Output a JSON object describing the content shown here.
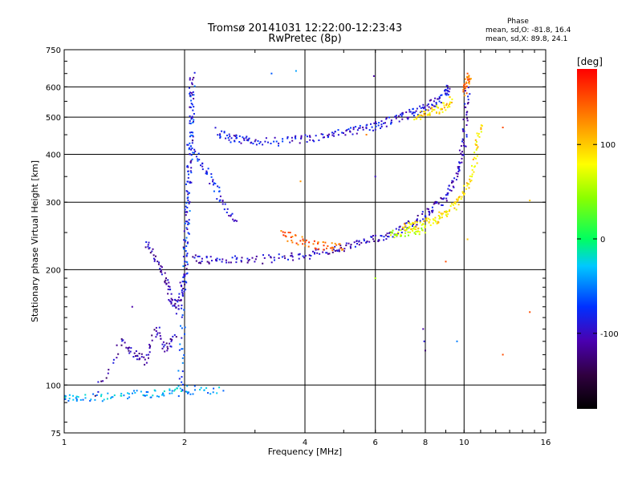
{
  "header": {
    "title": "Tromsø 20141031 12:22:00-12:23:43",
    "subtitle": "RwPretec (8p)"
  },
  "stats": {
    "heading": "Phase",
    "o_mode": "mean, sd,O: -81.8, 16.4",
    "x_mode": "mean, sd,X:  89.8, 24.1"
  },
  "colorbar": {
    "unit": "[deg]",
    "ticks": [
      "100",
      "0",
      "-100"
    ],
    "tick_values": [
      100,
      0,
      -100
    ],
    "range": [
      -180,
      180
    ]
  },
  "chart_data": {
    "type": "scatter",
    "title": "Tromsø 20141031 12:22:00-12:23:43",
    "subtitle": "RwPretec (8p)",
    "xlabel": "Frequency [MHz]",
    "ylabel": "Stationary phase Virtual Height [km]",
    "xscale": "log",
    "yscale": "log",
    "xlim": [
      1,
      16
    ],
    "ylim": [
      75,
      750
    ],
    "xticks": [
      1,
      2,
      4,
      6,
      8,
      10,
      16
    ],
    "xtick_labels": [
      "1",
      "2",
      "4",
      "6",
      "8",
      "10",
      "16"
    ],
    "yticks": [
      75,
      100,
      200,
      300,
      400,
      500,
      600,
      750
    ],
    "ytick_labels": [
      "75",
      "100",
      "200",
      "300",
      "400",
      "500",
      "600",
      "750"
    ],
    "grid": true,
    "colormap": "rainbow",
    "color_variable": "Phase [deg]",
    "traces": [
      {
        "points": [
          [
            1.9,
            155
          ],
          [
            1.96,
            175
          ],
          [
            2.0,
            200
          ],
          [
            2.03,
            260
          ],
          [
            2.05,
            340
          ],
          [
            2.07,
            440
          ],
          [
            2.08,
            560
          ],
          [
            2.09,
            650
          ]
        ],
        "phase": -100
      },
      {
        "points": [
          [
            1.95,
            95
          ],
          [
            1.97,
            130
          ],
          [
            2.0,
            180
          ],
          [
            2.02,
            230
          ],
          [
            2.04,
            300
          ],
          [
            2.06,
            380
          ],
          [
            2.08,
            480
          ],
          [
            2.09,
            600
          ]
        ],
        "phase": -70
      },
      {
        "points": [
          [
            2.05,
            420
          ],
          [
            2.2,
            380
          ],
          [
            2.35,
            340
          ],
          [
            2.5,
            300
          ],
          [
            2.7,
            260
          ]
        ],
        "phase": -85
      },
      {
        "points": [
          [
            2.1,
            215
          ],
          [
            2.3,
            212
          ],
          [
            2.6,
            212
          ],
          [
            3.0,
            212
          ],
          [
            3.5,
            215
          ],
          [
            4.0,
            218
          ],
          [
            4.5,
            222
          ],
          [
            5.0,
            228
          ],
          [
            5.5,
            235
          ],
          [
            6.0,
            240
          ],
          [
            6.5,
            247
          ],
          [
            7.0,
            256
          ],
          [
            7.5,
            266
          ],
          [
            8.0,
            278
          ],
          [
            8.5,
            292
          ],
          [
            9.0,
            310
          ],
          [
            9.5,
            340
          ],
          [
            9.8,
            380
          ],
          [
            10.0,
            430
          ],
          [
            10.1,
            500
          ],
          [
            10.2,
            600
          ]
        ],
        "phase": -100
      },
      {
        "points": [
          [
            7.0,
            258
          ],
          [
            7.5,
            260
          ],
          [
            8.0,
            265
          ],
          [
            8.5,
            270
          ],
          [
            9.0,
            280
          ],
          [
            9.5,
            295
          ],
          [
            10.0,
            320
          ],
          [
            10.5,
            360
          ],
          [
            10.8,
            420
          ],
          [
            11.0,
            480
          ]
        ],
        "phase": 90
      },
      {
        "points": [
          [
            6.5,
            248
          ],
          [
            7.0,
            250
          ],
          [
            7.5,
            252
          ],
          [
            8.0,
            255
          ]
        ],
        "phase": 60
      },
      {
        "points": [
          [
            3.5,
            248
          ],
          [
            3.8,
            240
          ],
          [
            4.2,
            232
          ],
          [
            4.6,
            230
          ],
          [
            5.0,
            230
          ]
        ],
        "phase": 140
      },
      {
        "points": [
          [
            2.4,
            460
          ],
          [
            2.6,
            440
          ],
          [
            2.8,
            435
          ],
          [
            3.0,
            432
          ],
          [
            3.5,
            432
          ],
          [
            4.0,
            438
          ],
          [
            4.5,
            445
          ],
          [
            5.0,
            455
          ],
          [
            5.5,
            465
          ],
          [
            6.0,
            475
          ],
          [
            6.5,
            487
          ],
          [
            7.0,
            500
          ],
          [
            7.5,
            515
          ],
          [
            8.0,
            530
          ],
          [
            8.5,
            550
          ],
          [
            9.0,
            575
          ],
          [
            9.2,
            600
          ]
        ],
        "phase": -90
      },
      {
        "points": [
          [
            7.5,
            500
          ],
          [
            8.0,
            510
          ],
          [
            8.5,
            520
          ],
          [
            9.0,
            535
          ],
          [
            9.3,
            560
          ]
        ],
        "phase": 95
      },
      {
        "points": [
          [
            10.0,
            580
          ],
          [
            10.2,
            620
          ],
          [
            10.4,
            650
          ]
        ],
        "phase": 130
      },
      {
        "points": [
          [
            1.0,
            92
          ],
          [
            1.1,
            92
          ],
          [
            1.3,
            93
          ],
          [
            1.5,
            95
          ],
          [
            1.7,
            95
          ],
          [
            1.9,
            97
          ],
          [
            2.1,
            97
          ],
          [
            2.5,
            96
          ]
        ],
        "phase": -40
      },
      {
        "points": [
          [
            1.2,
            95
          ],
          [
            1.4,
            130
          ],
          [
            1.5,
            120
          ],
          [
            1.6,
            115
          ],
          [
            1.7,
            140
          ],
          [
            1.8,
            125
          ],
          [
            1.9,
            135
          ]
        ],
        "phase": -110
      },
      {
        "points": [
          [
            1.6,
            240
          ],
          [
            1.7,
            210
          ],
          [
            1.8,
            190
          ],
          [
            1.85,
            170
          ],
          [
            1.9,
            160
          ]
        ],
        "phase": -105
      }
    ],
    "isolated_points": [
      {
        "x": 1.48,
        "y": 160,
        "phase": -110
      },
      {
        "x": 3.3,
        "y": 650,
        "phase": -60
      },
      {
        "x": 3.8,
        "y": 660,
        "phase": -40
      },
      {
        "x": 5.95,
        "y": 640,
        "phase": -110
      },
      {
        "x": 6.0,
        "y": 350,
        "phase": -100
      },
      {
        "x": 6.0,
        "y": 190,
        "phase": 50
      },
      {
        "x": 7.9,
        "y": 140,
        "phase": -110
      },
      {
        "x": 7.95,
        "y": 130,
        "phase": -90
      },
      {
        "x": 8.0,
        "y": 123,
        "phase": -130
      },
      {
        "x": 9.6,
        "y": 130,
        "phase": -50
      },
      {
        "x": 10.2,
        "y": 650,
        "phase": 150
      },
      {
        "x": 12.5,
        "y": 470,
        "phase": 150
      },
      {
        "x": 12.5,
        "y": 120,
        "phase": 150
      },
      {
        "x": 14.6,
        "y": 303,
        "phase": 100
      },
      {
        "x": 14.6,
        "y": 155,
        "phase": 150
      },
      {
        "x": 3.9,
        "y": 340,
        "phase": 120
      },
      {
        "x": 5.7,
        "y": 450,
        "phase": 130
      },
      {
        "x": 10.2,
        "y": 240,
        "phase": 100
      },
      {
        "x": 9.0,
        "y": 210,
        "phase": 150
      }
    ]
  }
}
